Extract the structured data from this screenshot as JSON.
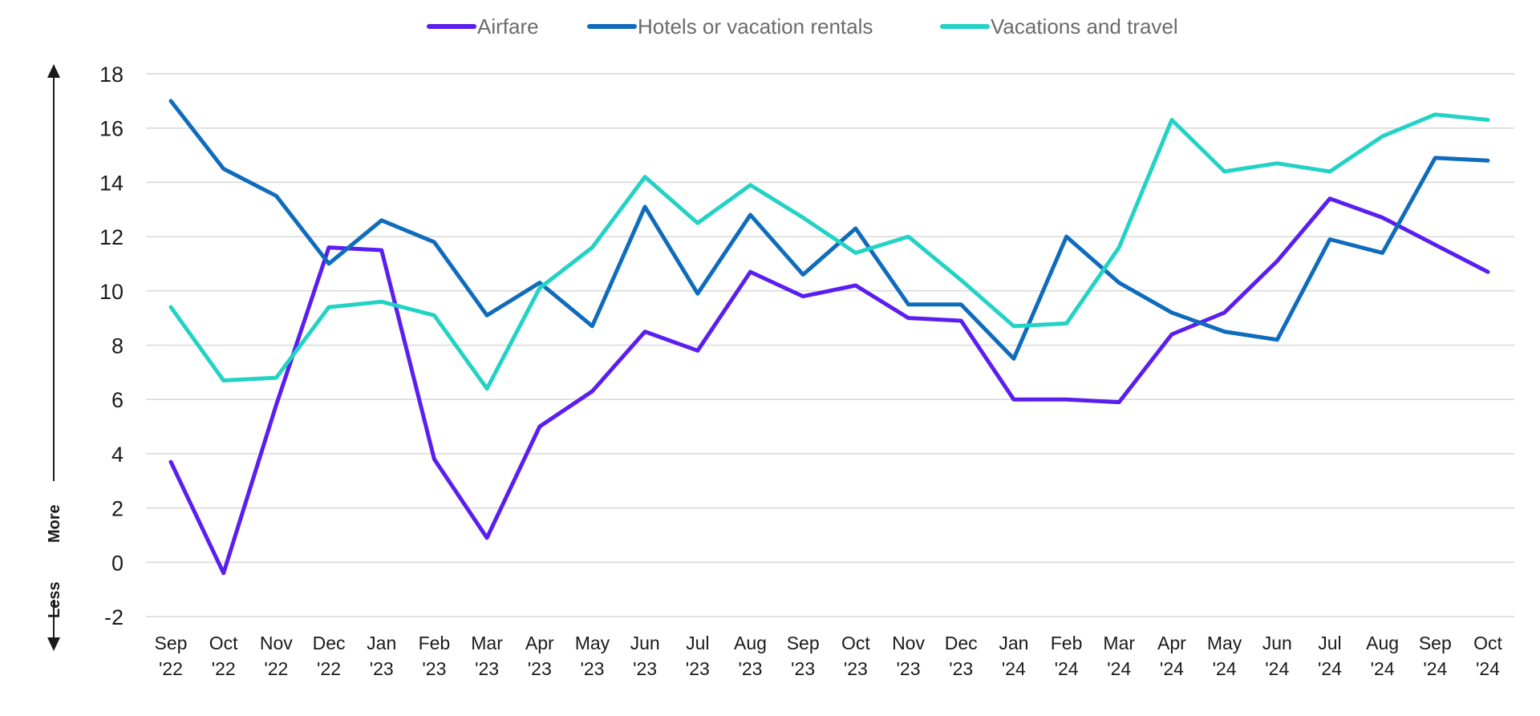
{
  "chart_data": {
    "type": "line",
    "x": [
      "Sep '22",
      "Oct '22",
      "Nov '22",
      "Dec '22",
      "Jan '23",
      "Feb '23",
      "Mar '23",
      "Apr '23",
      "May '23",
      "Jun '23",
      "Jul '23",
      "Aug '23",
      "Sep '23",
      "Oct '23",
      "Nov '23",
      "Dec '23",
      "Jan '24",
      "Feb '24",
      "Mar '24",
      "Apr '24",
      "May '24",
      "Jun '24",
      "Jul '24",
      "Aug '24",
      "Sep '24",
      "Oct '24"
    ],
    "series": [
      {
        "name": "Airfare",
        "color": "#5a1ef0",
        "values": [
          3.7,
          -0.4,
          5.8,
          11.6,
          11.5,
          3.8,
          0.9,
          5.0,
          6.3,
          8.5,
          7.8,
          10.7,
          9.8,
          10.2,
          9.0,
          8.9,
          6.0,
          6.0,
          5.9,
          8.4,
          9.2,
          11.1,
          13.4,
          12.7,
          11.7,
          10.7
        ]
      },
      {
        "name": "Hotels or vacation rentals",
        "color": "#0f6cbd",
        "values": [
          17.0,
          14.5,
          13.5,
          11.0,
          12.6,
          11.8,
          9.1,
          10.3,
          8.7,
          13.1,
          9.9,
          12.8,
          10.6,
          12.3,
          9.5,
          9.5,
          7.5,
          12.0,
          10.3,
          9.2,
          8.5,
          8.2,
          11.9,
          11.4,
          14.9,
          14.8
        ]
      },
      {
        "name": "Vacations and travel",
        "color": "#22d3c5",
        "values": [
          9.4,
          6.7,
          6.8,
          9.4,
          9.6,
          9.1,
          6.4,
          10.1,
          11.6,
          14.2,
          12.5,
          13.9,
          12.7,
          11.4,
          12.0,
          10.4,
          8.7,
          8.8,
          11.6,
          16.3,
          14.4,
          14.7,
          14.4,
          15.7,
          16.5,
          16.3
        ]
      }
    ],
    "ylim": [
      -2,
      18
    ],
    "yticks": [
      "18",
      "16",
      "14",
      "12",
      "10",
      "8",
      "6",
      "4",
      "2",
      "0",
      "-2"
    ],
    "grid": true,
    "legend_position": "top-center",
    "side_labels": {
      "up": "More",
      "down": "Less"
    }
  }
}
